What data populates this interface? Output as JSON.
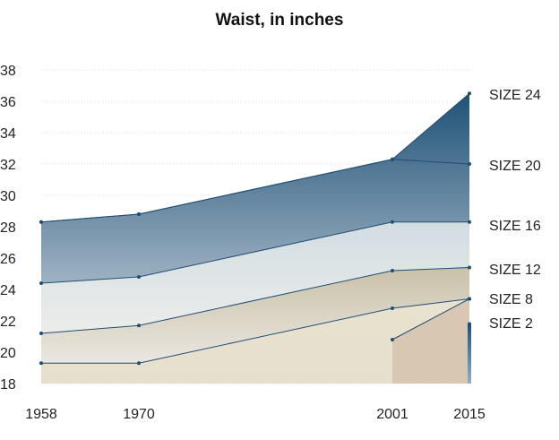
{
  "chart_data": {
    "type": "area",
    "title": "Waist, in inches",
    "xlabel": "",
    "ylabel": "",
    "x": [
      1958,
      1970,
      2001,
      2015
    ],
    "ylim": [
      18,
      38
    ],
    "yticks": [
      18,
      20,
      22,
      24,
      26,
      28,
      30,
      32,
      34,
      36,
      38
    ],
    "grid": true,
    "legend": "labels at right end of each series",
    "series": [
      {
        "name": "SIZE 2",
        "x": [
          2015
        ],
        "values": [
          21.8
        ],
        "color": "#1f5277"
      },
      {
        "name": "SIZE 8",
        "x": [
          1958,
          1970,
          2001,
          2015
        ],
        "values": [
          19.3,
          19.3,
          22.8,
          23.4
        ],
        "color": "#e6dfcc"
      },
      {
        "name": "SIZE 12",
        "x": [
          1958,
          1970,
          2001,
          2015
        ],
        "values": [
          21.2,
          21.7,
          25.2,
          25.4
        ],
        "color": "#ebe8e0"
      },
      {
        "name": "SIZE 16",
        "x": [
          1958,
          1970,
          2001,
          2015
        ],
        "values": [
          24.4,
          24.8,
          28.3,
          28.3
        ],
        "color": "#e3e8ea"
      },
      {
        "name": "SIZE 20",
        "x": [
          1958,
          1970,
          2001,
          2015
        ],
        "values": [
          28.3,
          28.8,
          32.3,
          32.0
        ],
        "color": "#9fb2c3"
      },
      {
        "name": "SIZE 24",
        "x": [
          2015
        ],
        "values": [
          36.5
        ],
        "color": "#1f5277"
      }
    ],
    "extra_segment": {
      "x": [
        2001,
        2015
      ],
      "values": [
        20.8,
        23.4
      ],
      "fill": "#d8c8b3"
    }
  }
}
